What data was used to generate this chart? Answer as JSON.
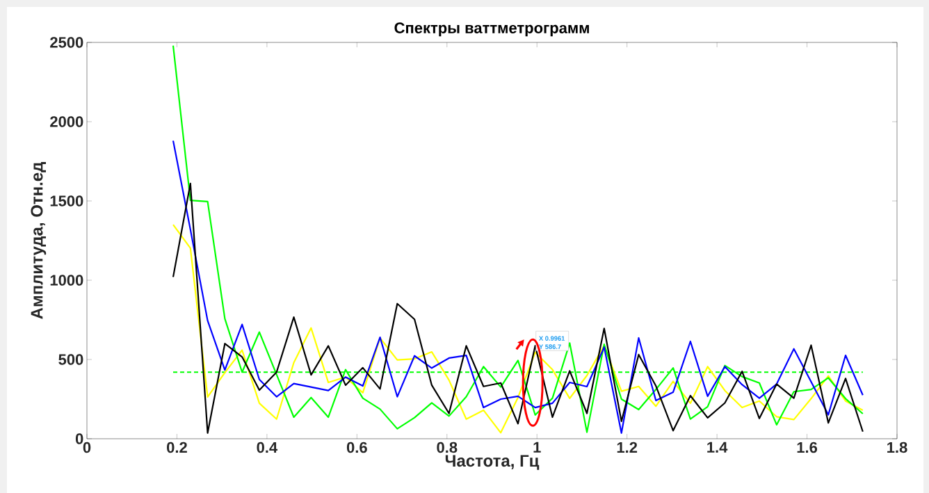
{
  "chart_data": {
    "type": "line",
    "title": "Спектры ваттметрограмм",
    "xlabel": "Частота, Гц",
    "ylabel": "Амплитуда, Отн.ед",
    "x": [
      0.1916,
      0.2299,
      0.2682,
      0.3065,
      0.3448,
      0.3831,
      0.4214,
      0.4597,
      0.4981,
      0.5364,
      0.5747,
      0.613,
      0.6513,
      0.6896,
      0.7279,
      0.7662,
      0.8045,
      0.8429,
      0.8812,
      0.9195,
      0.9578,
      0.9961,
      1.0344,
      1.0727,
      1.111,
      1.1493,
      1.1877,
      1.226,
      1.2643,
      1.3026,
      1.3409,
      1.3792,
      1.4175,
      1.4558,
      1.4941,
      1.5325,
      1.5708,
      1.6091,
      1.6474,
      1.6857,
      1.724
    ],
    "series": [
      {
        "type": "line",
        "color": "#00ff00",
        "line_style": "dashed",
        "x": [
          0.1916,
          1.724
        ],
        "values": [
          420,
          420
        ]
      },
      {
        "color": "#ffff00",
        "values": [
          1350,
          1202,
          264,
          417,
          559,
          224,
          124,
          480,
          699,
          355,
          389,
          290,
          636,
          497,
          504,
          548,
          370,
          124,
          180,
          38,
          260,
          545,
          436,
          255,
          399,
          588,
          300,
          330,
          205,
          362,
          224,
          455,
          304,
          197,
          238,
          139,
          121,
          253,
          396,
          238,
          180
        ]
      },
      {
        "color": "#00ff00",
        "values": [
          2480,
          1504,
          1496,
          757,
          420,
          673,
          405,
          136,
          260,
          136,
          436,
          256,
          187,
          63,
          133,
          226,
          143,
          265,
          455,
          326,
          494,
          150,
          256,
          604,
          41,
          596,
          250,
          184,
          311,
          447,
          124,
          202,
          462,
          392,
          352,
          88,
          297,
          311,
          384,
          253,
          158
        ]
      },
      {
        "color": "#0000ff",
        "values": [
          1880,
          1320,
          745,
          434,
          721,
          374,
          265,
          348,
          326,
          304,
          389,
          333,
          640,
          265,
          523,
          446,
          509,
          526,
          197,
          250,
          268,
          197,
          224,
          355,
          329,
          578,
          36,
          636,
          241,
          294,
          614,
          268,
          455,
          341,
          256,
          345,
          567,
          360,
          151,
          526,
          275
        ]
      },
      {
        "color": "#000000",
        "values": [
          1020,
          1610,
          36,
          600,
          516,
          307,
          420,
          767,
          403,
          586,
          338,
          448,
          314,
          852,
          753,
          338,
          160,
          586,
          330,
          352,
          95,
          586.7,
          136,
          428,
          160,
          696,
          110,
          531,
          333,
          51,
          272,
          132,
          226,
          425,
          128,
          345,
          256,
          590,
          100,
          380,
          45
        ]
      }
    ],
    "annotations": [
      {
        "text": "X 0.9961",
        "x": 0.9961,
        "y": 586.7
      },
      {
        "text": "Y 586.7",
        "x": 0.9961,
        "y": 586.7
      }
    ],
    "xlim": [
      0,
      1.8
    ],
    "ylim": [
      0,
      2500
    ],
    "xticks": [
      0,
      0.2,
      0.4,
      0.6,
      0.8,
      1,
      1.2,
      1.4,
      1.6,
      1.8
    ],
    "yticks": [
      0,
      500,
      1000,
      1500,
      2000,
      2500
    ]
  }
}
